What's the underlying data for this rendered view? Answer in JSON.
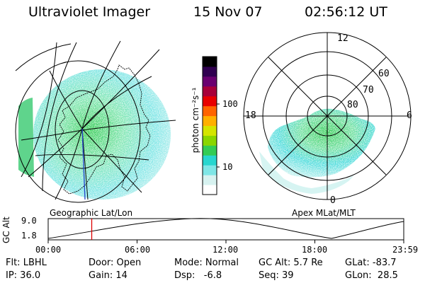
{
  "header": {
    "instrument": "Ultraviolet Imager",
    "date": "15 Nov 07",
    "time": "02:56:12 UT"
  },
  "colorbar": {
    "unit_label": "photon cm⁻²s⁻¹",
    "tick_100": "100",
    "tick_10": "10",
    "colors": [
      "#ffffff",
      "#d7f2f0",
      "#7fe6e6",
      "#28d6cf",
      "#33cc55",
      "#8ad600",
      "#d4e500",
      "#ffb000",
      "#ff6400",
      "#e80000",
      "#a8003a",
      "#6a0070",
      "#300050",
      "#000000"
    ]
  },
  "geographic_panel": {
    "caption": "Geographic Lat/Lon"
  },
  "polar_panel": {
    "caption": "Apex MLat/MLT",
    "mlt_labels": {
      "top": "12",
      "left": "18",
      "right": "6",
      "bottom": "0"
    },
    "lat_labels": [
      "60",
      "70",
      "80"
    ]
  },
  "altitude_plot": {
    "ylabel": "GC Alt",
    "y_max_label": "9.0",
    "y_min_label": "1.8",
    "x_labels": [
      "00:00",
      "06:00",
      "12:00",
      "18:00",
      "23:59"
    ],
    "marker_time_hours": 2.94,
    "marker_color": "#dd0000"
  },
  "footer": {
    "filter": "Flt: LBHL",
    "door": "Door: Open",
    "mode": "Mode: Normal",
    "gc_alt": "GC Alt: 5.7 Re",
    "glat": "GLat: -83.7",
    "ip": "IP: 36.0",
    "gain": "Gain: 14",
    "dsp": "Dsp:   -6.8",
    "seq": "Seq: 39",
    "glon": "GLon:  28.5"
  }
}
